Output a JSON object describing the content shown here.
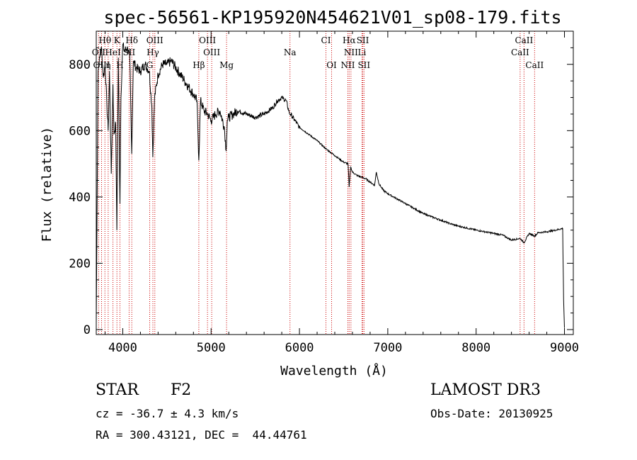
{
  "chart_data": {
    "type": "line",
    "title": "spec-56561-KP195920N454621V01_sp08-179.fits",
    "xlabel": "Wavelength (Å)",
    "ylabel": "Flux (relative)",
    "xlim": [
      3700,
      9100
    ],
    "ylim": [
      -15,
      900
    ],
    "xticks": [
      4000,
      5000,
      6000,
      7000,
      8000,
      9000
    ],
    "yticks": [
      0,
      200,
      400,
      600,
      800
    ],
    "series": [
      {
        "name": "spectrum",
        "x": [
          3700,
          3720,
          3740,
          3760,
          3780,
          3800,
          3820,
          3835,
          3850,
          3870,
          3889,
          3900,
          3920,
          3933,
          3950,
          3968,
          3980,
          4000,
          4020,
          4050,
          4080,
          4101,
          4120,
          4150,
          4200,
          4250,
          4300,
          4330,
          4340,
          4360,
          4400,
          4450,
          4500,
          4550,
          4600,
          4650,
          4700,
          4750,
          4800,
          4840,
          4861,
          4880,
          4920,
          4960,
          5000,
          5050,
          5100,
          5150,
          5170,
          5183,
          5200,
          5250,
          5300,
          5400,
          5500,
          5600,
          5700,
          5750,
          5800,
          5850,
          5890,
          5900,
          5950,
          6000,
          6100,
          6200,
          6300,
          6400,
          6500,
          6550,
          6563,
          6580,
          6600,
          6650,
          6700,
          6750,
          6800,
          6850,
          6870,
          6900,
          6950,
          7000,
          7100,
          7200,
          7300,
          7400,
          7500,
          7600,
          7700,
          7800,
          7900,
          8000,
          8100,
          8200,
          8300,
          8400,
          8498,
          8542,
          8600,
          8662,
          8700,
          8800,
          8900,
          8980,
          8990,
          9000
        ],
        "y": [
          20,
          780,
          820,
          850,
          760,
          800,
          680,
          600,
          780,
          470,
          740,
          590,
          620,
          300,
          820,
          380,
          700,
          860,
          840,
          850,
          820,
          530,
          810,
          790,
          780,
          800,
          780,
          670,
          520,
          700,
          770,
          800,
          800,
          810,
          790,
          770,
          750,
          730,
          710,
          690,
          510,
          690,
          660,
          650,
          630,
          650,
          660,
          610,
          540,
          630,
          640,
          650,
          660,
          650,
          640,
          650,
          670,
          690,
          700,
          690,
          650,
          650,
          630,
          610,
          590,
          570,
          545,
          525,
          505,
          500,
          430,
          490,
          475,
          465,
          460,
          455,
          445,
          435,
          475,
          440,
          420,
          410,
          395,
          380,
          365,
          350,
          340,
          330,
          320,
          312,
          306,
          300,
          295,
          290,
          285,
          270,
          275,
          262,
          290,
          282,
          292,
          295,
          300,
          305,
          90,
          5
        ]
      }
    ],
    "lines_upper": [
      {
        "name": "Hθ",
        "x": 3798
      },
      {
        "name": "K",
        "x": 3934
      },
      {
        "name": "Hδ",
        "x": 4102
      },
      {
        "name": "OIII",
        "x": 4363
      },
      {
        "name": "OIII",
        "x": 4959
      },
      {
        "name": "CI",
        "x": 6300
      },
      {
        "name": "Hα",
        "x": 6563
      },
      {
        "name": "SII",
        "x": 6717
      },
      {
        "name": "CaII",
        "x": 8542
      }
    ],
    "lines_middle": [
      {
        "name": "OII",
        "x": 3727
      },
      {
        "name": "HeI",
        "x": 3889
      },
      {
        "name": "SII",
        "x": 4072
      },
      {
        "name": "Hγ",
        "x": 4341
      },
      {
        "name": "OIII",
        "x": 5007
      },
      {
        "name": "Na",
        "x": 5893
      },
      {
        "name": "NII",
        "x": 6583
      },
      {
        "name": "Li",
        "x": 6708
      },
      {
        "name": "CaII",
        "x": 8498
      }
    ],
    "lines_lower": [
      {
        "name": "OIII",
        "x": 3760
      },
      {
        "name": "η",
        "x": 3835
      },
      {
        "name": "H",
        "x": 3968
      },
      {
        "name": "G",
        "x": 4305
      },
      {
        "name": "Hβ",
        "x": 4861
      },
      {
        "name": "Mg",
        "x": 5175
      },
      {
        "name": "OI",
        "x": 6364
      },
      {
        "name": "NII",
        "x": 6548
      },
      {
        "name": "SII",
        "x": 6731
      },
      {
        "name": "CaII",
        "x": 8662
      }
    ],
    "line_marker_color": "#cc0000"
  },
  "info": {
    "object_class": "STAR",
    "subclass": "F2",
    "survey": "LAMOST DR3",
    "redshift_text": "cz = -36.7 ± 4.3 km/s",
    "obs_date": "Obs-Date: 20130925",
    "coords": "RA = 300.43121, DEC =  44.44761"
  }
}
